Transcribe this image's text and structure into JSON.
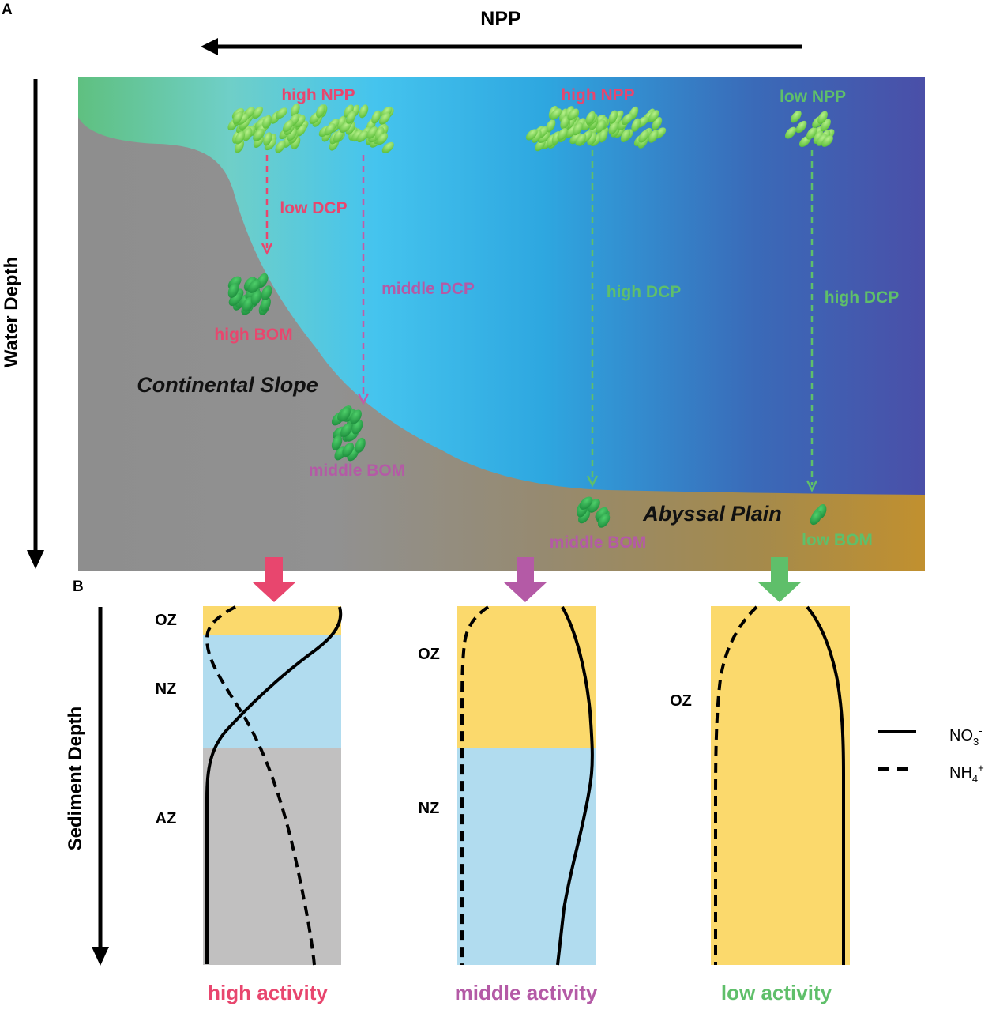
{
  "panels": {
    "a_label": "A",
    "b_label": "B"
  },
  "axes": {
    "npp": "NPP",
    "water_depth": "Water Depth",
    "sediment_depth": "Sediment Depth"
  },
  "water_column": {
    "continental_slope": "Continental Slope",
    "abyssal_plain": "Abyssal Plain",
    "stations": [
      {
        "npp": "high NPP",
        "dcp": "low DCP",
        "bom": "high BOM"
      },
      {
        "dcp": "middle DCP",
        "bom": "middle BOM"
      },
      {
        "npp": "high NPP",
        "dcp": "high DCP",
        "bom": "middle BOM"
      },
      {
        "npp": "low NPP",
        "dcp": "high DCP",
        "bom": "low BOM"
      }
    ]
  },
  "sediment_columns": [
    {
      "activity": "high activity",
      "zones": [
        "OZ",
        "NZ",
        "AZ"
      ]
    },
    {
      "activity": "middle activity",
      "zones": [
        "OZ",
        "NZ"
      ]
    },
    {
      "activity": "low activity",
      "zones": [
        "OZ"
      ]
    }
  ],
  "legend": {
    "solid": {
      "base": "NO",
      "sub": "3",
      "sup": "-"
    },
    "dashed": {
      "base": "NH",
      "sub": "4",
      "sup": "+"
    }
  },
  "colors": {
    "high": "#e8466e",
    "middle": "#b45aa6",
    "low": "#5fbf6a",
    "oxic_zone": "#fbd96c",
    "nitrogenous_zone": "#b1dcef",
    "anoxic_zone": "#c1c0c0"
  }
}
